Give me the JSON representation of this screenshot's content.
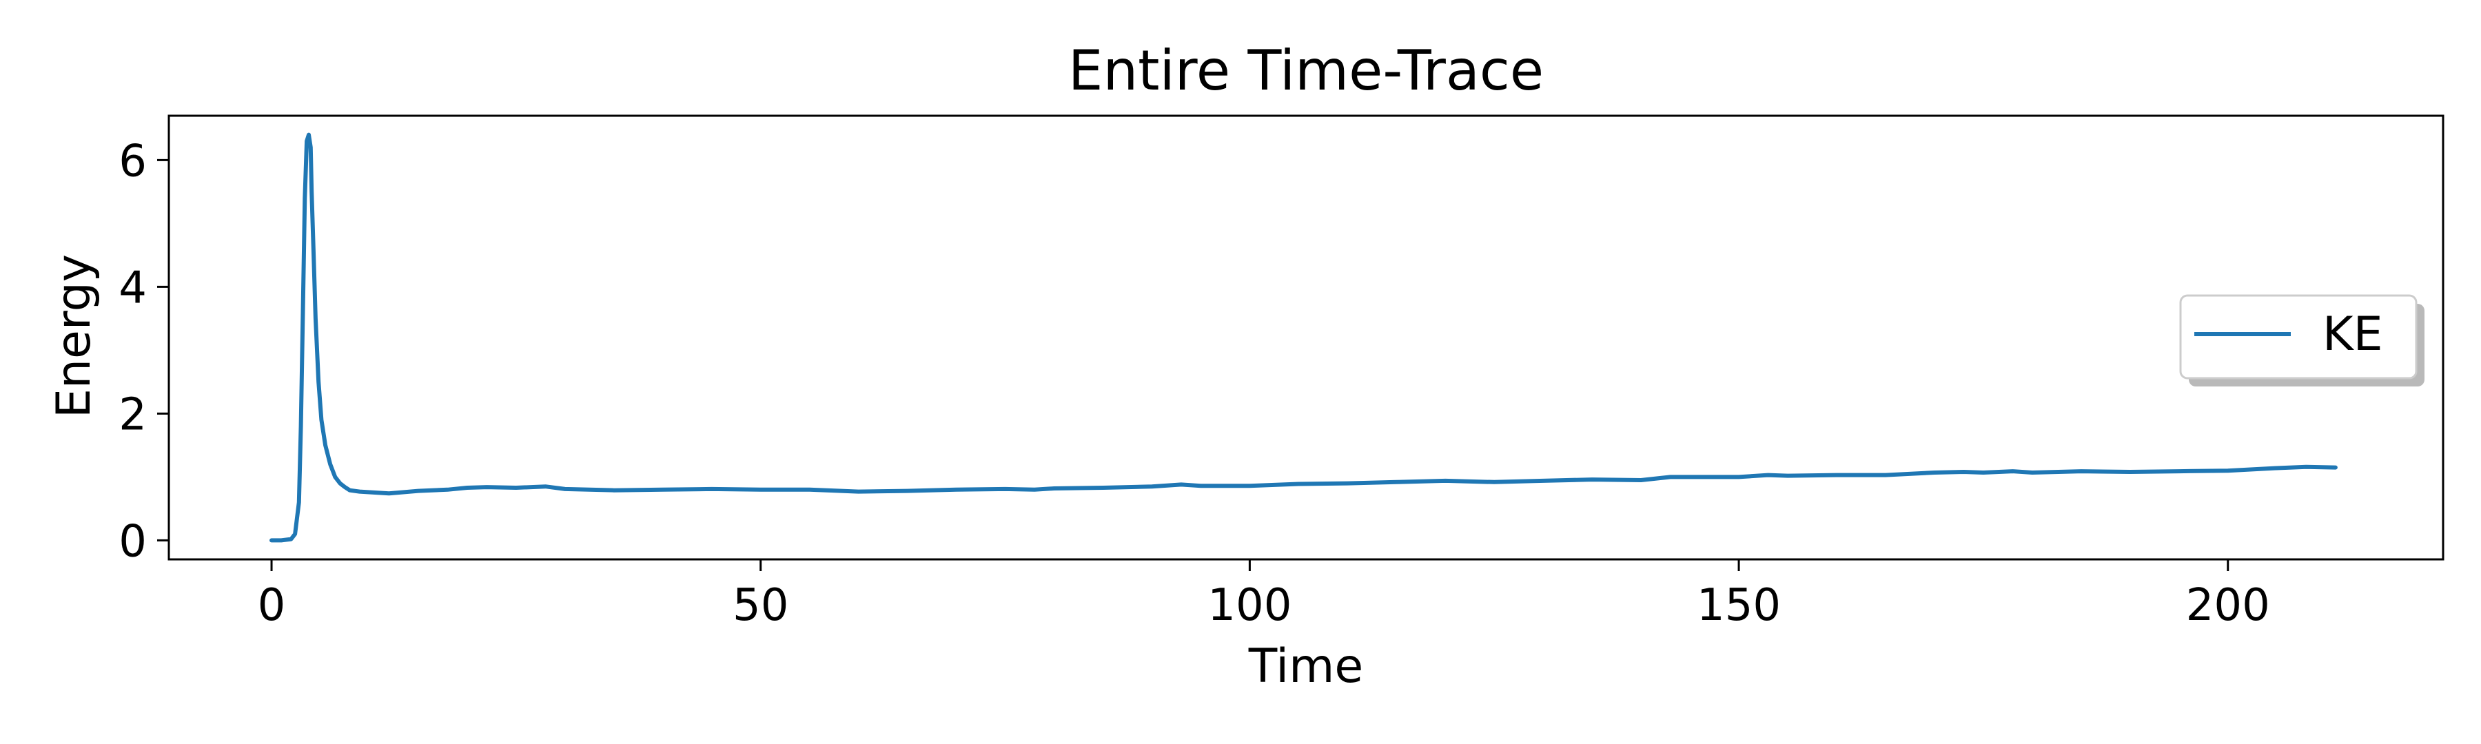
{
  "chart_data": {
    "type": "line",
    "title": "Entire Time-Trace",
    "xlabel": "Time",
    "ylabel": "Energy",
    "xlim": [
      -10.5,
      222
    ],
    "ylim": [
      -0.3,
      6.7
    ],
    "x_ticks": [
      0,
      50,
      100,
      150,
      200
    ],
    "y_ticks": [
      0,
      2,
      4,
      6
    ],
    "grid": false,
    "legend": {
      "placement": "right",
      "shadow": true
    },
    "series": [
      {
        "name": "KE",
        "color": "#1f77b4",
        "x": [
          0,
          1,
          2,
          2.4,
          2.8,
          3.0,
          3.2,
          3.4,
          3.6,
          3.8,
          4.0,
          4.1,
          4.3,
          4.5,
          4.8,
          5.1,
          5.5,
          6.0,
          6.5,
          7.0,
          7.5,
          8.0,
          9,
          10,
          12,
          15,
          18,
          20,
          22,
          25,
          28,
          30,
          35,
          40,
          45,
          50,
          55,
          60,
          65,
          70,
          75,
          78,
          80,
          85,
          90,
          93,
          95,
          100,
          105,
          110,
          115,
          120,
          125,
          130,
          135,
          140,
          143,
          145,
          150,
          153,
          155,
          160,
          165,
          170,
          173,
          175,
          178,
          180,
          185,
          190,
          195,
          200,
          205,
          208,
          211
        ],
        "values": [
          0.0,
          0.0,
          0.02,
          0.1,
          0.6,
          1.8,
          3.6,
          5.4,
          6.3,
          6.4,
          6.2,
          5.5,
          4.5,
          3.5,
          2.5,
          1.9,
          1.5,
          1.2,
          1.0,
          0.9,
          0.84,
          0.79,
          0.77,
          0.76,
          0.74,
          0.78,
          0.8,
          0.83,
          0.84,
          0.83,
          0.85,
          0.81,
          0.79,
          0.8,
          0.81,
          0.8,
          0.8,
          0.77,
          0.78,
          0.8,
          0.81,
          0.8,
          0.82,
          0.83,
          0.85,
          0.88,
          0.86,
          0.86,
          0.89,
          0.9,
          0.92,
          0.94,
          0.92,
          0.94,
          0.96,
          0.95,
          1.0,
          1.0,
          1.0,
          1.03,
          1.02,
          1.03,
          1.03,
          1.07,
          1.08,
          1.07,
          1.09,
          1.07,
          1.09,
          1.08,
          1.09,
          1.1,
          1.14,
          1.16,
          1.15
        ]
      }
    ]
  }
}
